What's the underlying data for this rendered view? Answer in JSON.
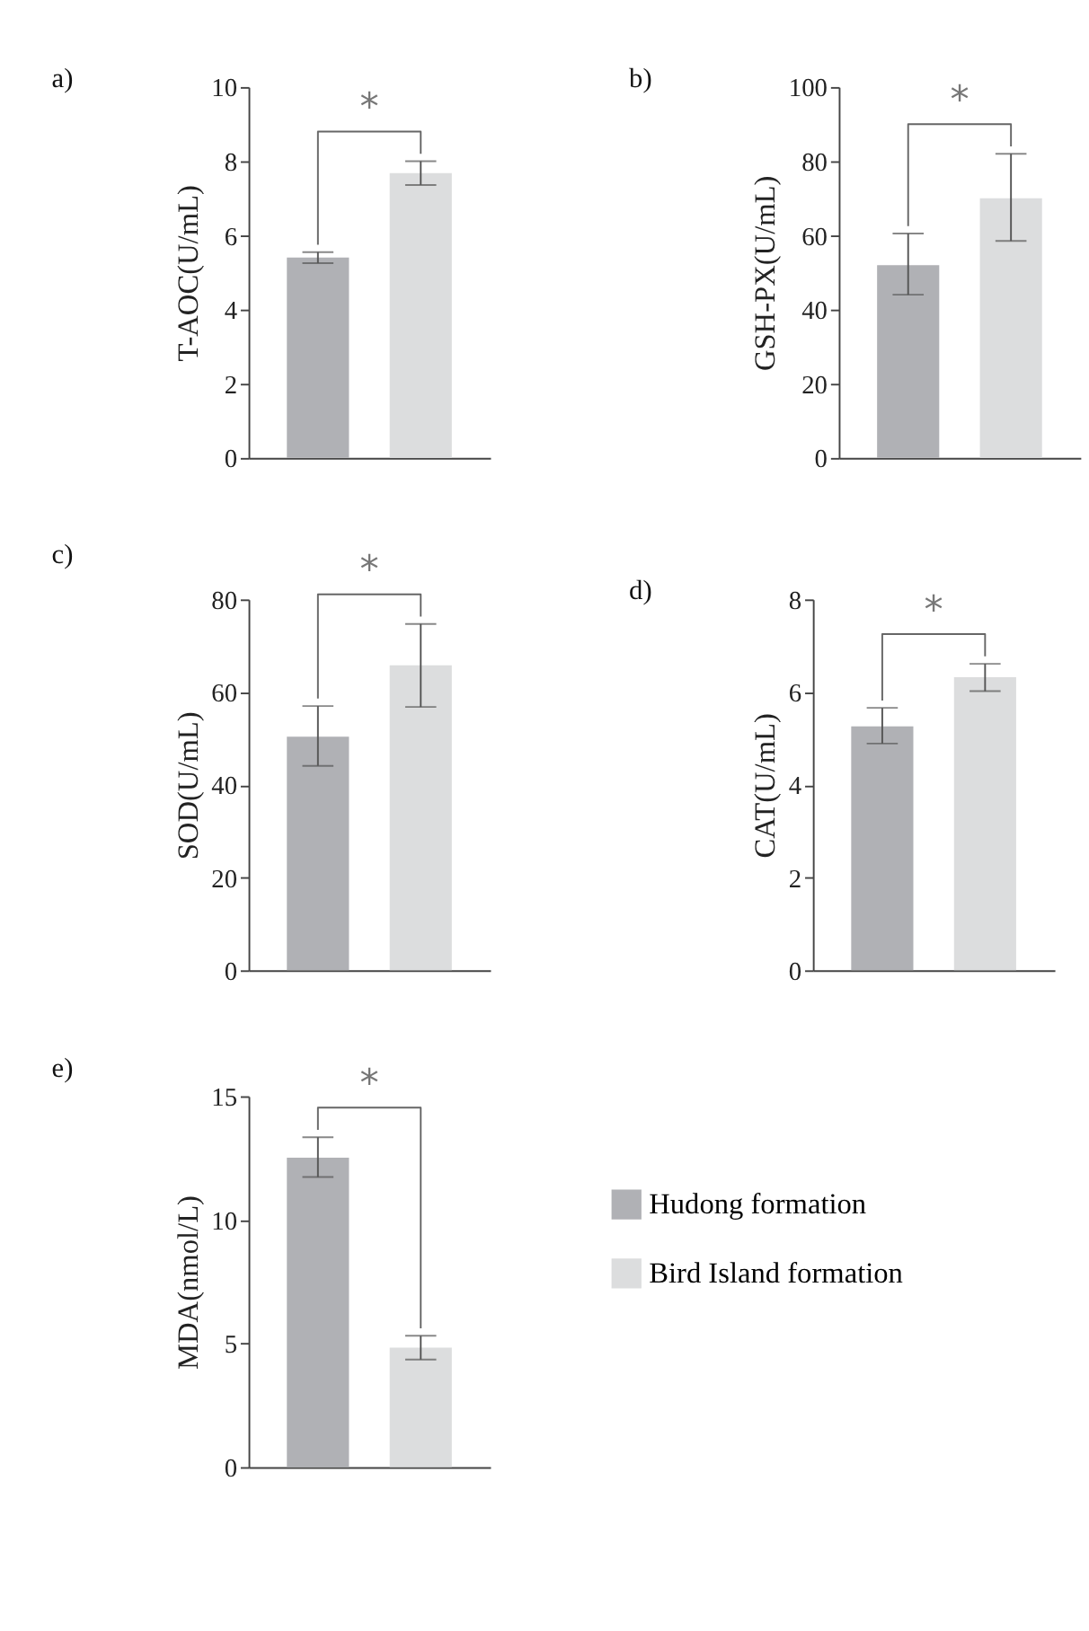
{
  "chart_data": [
    {
      "type": "bar",
      "title": "a)",
      "ylabel": "T-AOC(U/mL)",
      "categories": [
        null
      ],
      "ylim": [
        0,
        10
      ],
      "yticks": [
        0,
        2,
        4,
        6,
        8,
        10
      ],
      "annotations": [
        "*"
      ],
      "legend": false,
      "tick_labels": "y",
      "series": [
        {
          "color": "#b0b1b5",
          "values": [
            5.4
          ],
          "errors": [
            0.15
          ]
        },
        {
          "color": "#dcddde",
          "values": [
            7.68
          ],
          "errors": [
            0.32
          ]
        }
      ]
    },
    {
      "type": "bar",
      "title": "b)",
      "ylabel": "GSH-PX(U/mL)",
      "categories": [
        null
      ],
      "ylim": [
        0,
        100
      ],
      "yticks": [
        0,
        20,
        40,
        60,
        80,
        100
      ],
      "annotations": [
        "*"
      ],
      "legend": false,
      "tick_labels": "y",
      "series": [
        {
          "color": "#b0b1b5",
          "values": [
            52
          ],
          "errors": [
            [
              44,
              60.5
            ]
          ]
        },
        {
          "color": "#dcddde",
          "values": [
            70
          ],
          "errors": [
            [
              58.5,
              82
            ]
          ]
        }
      ]
    },
    {
      "type": "bar",
      "title": "c)",
      "ylabel": "SOD(U/mL)",
      "categories": [
        null
      ],
      "ylim": [
        0,
        80
      ],
      "yticks": [
        0,
        20,
        40,
        60,
        80
      ],
      "annotations": [
        "*"
      ],
      "legend": false,
      "tick_labels": "y",
      "series": [
        {
          "color": "#b0b1b5",
          "values": [
            50.4
          ],
          "errors": [
            [
              44.1,
              57
            ]
          ]
        },
        {
          "color": "#dcddde",
          "values": [
            65.8
          ],
          "errors": [
            [
              56.8,
              74.7
            ]
          ]
        }
      ]
    },
    {
      "type": "bar",
      "title": "d)",
      "ylabel": "CAT(U/mL)",
      "categories": [
        null
      ],
      "ylim": [
        0,
        8
      ],
      "yticks": [
        0,
        2,
        4,
        6,
        8
      ],
      "annotations": [
        "*"
      ],
      "legend": false,
      "tick_labels": "y",
      "series": [
        {
          "color": "#b0b1b5",
          "values": [
            5.26
          ],
          "errors": [
            [
              4.89,
              5.66
            ]
          ]
        },
        {
          "color": "#dcddde",
          "values": [
            6.32
          ],
          "errors": [
            [
              6.02,
              6.61
            ]
          ]
        }
      ]
    },
    {
      "type": "bar",
      "title": "e)",
      "ylabel": "MDA(nmol/L)",
      "categories": [
        null
      ],
      "ylim": [
        0,
        15
      ],
      "yticks": [
        0,
        5,
        10,
        15
      ],
      "annotations": [
        "*"
      ],
      "legend": "right",
      "tick_labels": "y",
      "series": [
        {
          "name": "Hudong formation",
          "color": "#b0b1b5",
          "values": [
            12.51
          ],
          "errors": [
            [
              11.73,
              13.34
            ]
          ]
        },
        {
          "name": "Bird Island formation",
          "color": "#dcddde",
          "values": [
            4.83
          ],
          "errors": [
            [
              4.35,
              5.31
            ]
          ]
        }
      ]
    }
  ]
}
